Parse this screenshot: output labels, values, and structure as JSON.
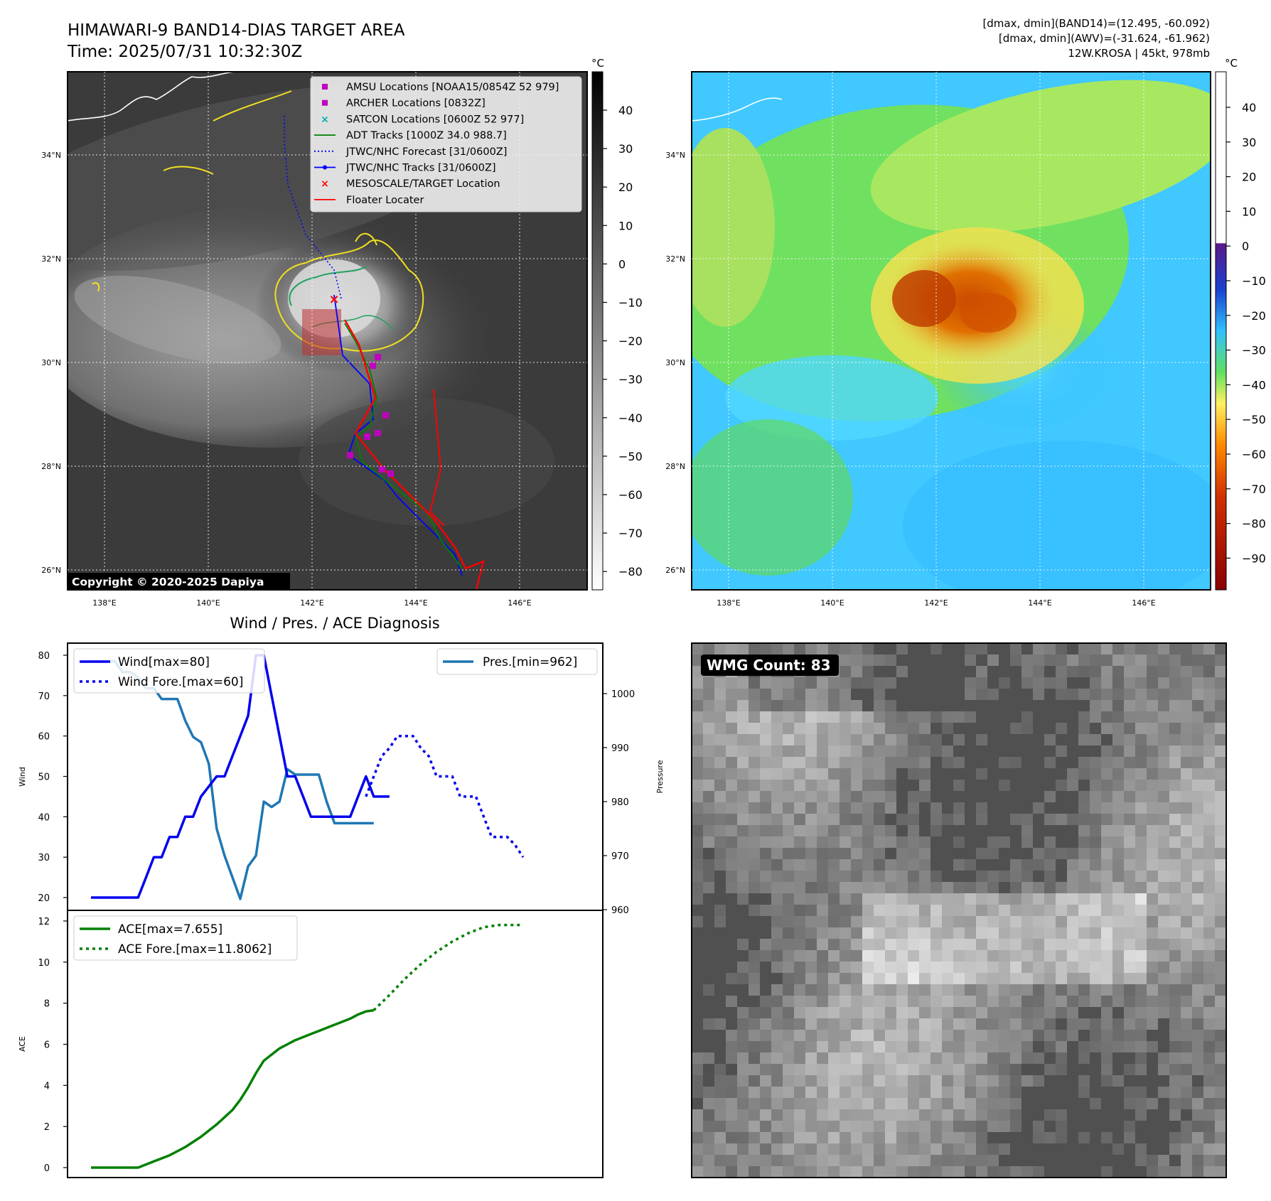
{
  "header": {
    "title_line1": "HIMAWARI-9 BAND14-DIAS TARGET AREA",
    "title_line2": "Time: 2025/07/31 10:32:30Z",
    "info_line1": "[dmax, dmin](BAND14)=(12.495, -60.092)",
    "info_line2": "[dmax, dmin](AWV)=(-31.624, -61.962)",
    "info_line3": "12W.KROSA | 45kt, 978mb"
  },
  "map_ir": {
    "lat_labels": [
      "34°N",
      "32°N",
      "30°N",
      "28°N",
      "26°N"
    ],
    "lon_labels": [
      "138°E",
      "140°E",
      "142°E",
      "144°E",
      "146°E"
    ],
    "colorbar_unit": "°C",
    "colorbar_ticks": [
      "40",
      "30",
      "20",
      "10",
      "0",
      "−10",
      "−20",
      "−30",
      "−40",
      "−50",
      "−60",
      "−70",
      "−80"
    ],
    "copyright": "Copyright © 2020-2025 Dapiya",
    "legend": [
      {
        "label": "AMSU Locations [NOAA15/0854Z 52 979]",
        "color": "#c000c0",
        "symbol": "square"
      },
      {
        "label": "ARCHER Locations [0832Z]",
        "color": "#c000c0",
        "symbol": "square"
      },
      {
        "label": "SATCON Locations [0600Z 52 977]",
        "color": "#00b0b0",
        "symbol": "x"
      },
      {
        "label": "ADT Tracks [1000Z 34.0 988.7]",
        "color": "#008000",
        "symbol": "line"
      },
      {
        "label": "JTWC/NHC Forecast [31/0600Z]",
        "color": "#0000ff",
        "symbol": "dotted"
      },
      {
        "label": "JTWC/NHC Tracks [31/0600Z]",
        "color": "#0000ff",
        "symbol": "line-dot"
      },
      {
        "label": "MESOSCALE/TARGET Location",
        "color": "#ff0000",
        "symbol": "x"
      },
      {
        "label": "Floater Locater",
        "color": "#ff0000",
        "symbol": "line"
      }
    ]
  },
  "map_wv": {
    "lat_labels": [
      "34°N",
      "32°N",
      "30°N",
      "28°N",
      "26°N"
    ],
    "lon_labels": [
      "138°E",
      "140°E",
      "142°E",
      "144°E",
      "146°E"
    ],
    "colorbar_unit": "°C",
    "colorbar_ticks": [
      "40",
      "30",
      "20",
      "10",
      "0",
      "−10",
      "−20",
      "−30",
      "−40",
      "−50",
      "−60",
      "−70",
      "−80",
      "−90"
    ]
  },
  "wmg": {
    "label": "WMG Count: 83"
  },
  "diagnosis": {
    "title": "Wind / Pres. / ACE Diagnosis",
    "wind_ylabel": "Wind",
    "pressure_ylabel": "Pressure",
    "ace_ylabel": "ACE",
    "wind_ticks": [
      "80",
      "70",
      "60",
      "50",
      "40",
      "30",
      "20"
    ],
    "pressure_ticks": [
      "1000",
      "990",
      "980",
      "970",
      "960"
    ],
    "ace_ticks": [
      "12",
      "10",
      "8",
      "6",
      "4",
      "2",
      "0"
    ],
    "legend_wind": "Wind[max=80]",
    "legend_wind_fore": "Wind Fore.[max=60]",
    "legend_pres": "Pres.[min=962]",
    "legend_ace": "ACE[max=7.655]",
    "legend_ace_fore": "ACE Fore.[max=11.8062]"
  },
  "chart_data": [
    {
      "type": "line",
      "title": "Wind / Pres. / ACE Diagnosis",
      "ylabel": "Wind",
      "ylim": [
        18,
        82
      ],
      "series": [
        {
          "name": "Wind[max=80]",
          "style": "solid",
          "color": "#0000ee",
          "x": [
            0,
            3,
            6,
            7,
            8,
            9,
            10,
            11,
            12,
            13,
            14,
            16,
            17,
            18,
            19,
            20,
            21,
            22,
            23,
            24,
            25,
            26,
            27,
            28,
            29,
            30,
            31,
            32,
            33,
            34,
            35,
            36,
            37,
            38
          ],
          "values": [
            20,
            20,
            20,
            25,
            30,
            30,
            35,
            35,
            40,
            40,
            45,
            50,
            50,
            55,
            60,
            65,
            80,
            80,
            70,
            60,
            50,
            50,
            45,
            40,
            40,
            40,
            40,
            40,
            40,
            45,
            50,
            45,
            45,
            45
          ]
        },
        {
          "name": "Wind Fore.[max=60]",
          "style": "dotted",
          "color": "#0000ee",
          "x": [
            35,
            36,
            37,
            38,
            39,
            40,
            41,
            42,
            43,
            44,
            45,
            46,
            47,
            48,
            49,
            50,
            51,
            52,
            53,
            54,
            55
          ],
          "values": [
            45,
            50,
            55,
            57,
            60,
            60,
            60,
            57,
            55,
            50,
            50,
            50,
            45,
            45,
            45,
            40,
            35,
            35,
            35,
            33,
            30
          ]
        }
      ]
    },
    {
      "type": "line",
      "ylabel": "Pressure",
      "ylim": [
        960,
        1008
      ],
      "series": [
        {
          "name": "Pres.[min=962]",
          "style": "solid",
          "color": "#1f77b4",
          "x": [
            0,
            3,
            4,
            5,
            6,
            7,
            8,
            9,
            10,
            11,
            12,
            13,
            14,
            15,
            16,
            17,
            18,
            19,
            20,
            21,
            22,
            23,
            24,
            25,
            26,
            27,
            28,
            29,
            30,
            31,
            32,
            33,
            34,
            35,
            36
          ],
          "values": [
            1006,
            1006,
            1004,
            1004,
            1003,
            1001,
            1001,
            999,
            999,
            999,
            995,
            992,
            991,
            987,
            975,
            970,
            966,
            962,
            968,
            970,
            980,
            979,
            980,
            986,
            985,
            985,
            985,
            985,
            980,
            976,
            976,
            976,
            976,
            976,
            976
          ]
        }
      ]
    },
    {
      "type": "line",
      "ylabel": "ACE",
      "ylim": [
        -0.5,
        12.5
      ],
      "series": [
        {
          "name": "ACE[max=7.655]",
          "style": "solid",
          "color": "#008000",
          "x": [
            0,
            6,
            8,
            10,
            12,
            14,
            16,
            18,
            19,
            20,
            21,
            22,
            23,
            24,
            25,
            26,
            27,
            28,
            29,
            30,
            31,
            32,
            33,
            34,
            35,
            36
          ],
          "values": [
            0,
            0,
            0.3,
            0.6,
            1.0,
            1.5,
            2.1,
            2.8,
            3.3,
            3.9,
            4.6,
            5.2,
            5.5,
            5.8,
            6.0,
            6.2,
            6.35,
            6.5,
            6.65,
            6.8,
            6.95,
            7.1,
            7.25,
            7.45,
            7.6,
            7.655
          ]
        },
        {
          "name": "ACE Fore.[max=11.8062]",
          "style": "dotted",
          "color": "#008000",
          "x": [
            36,
            38,
            40,
            42,
            44,
            46,
            48,
            50,
            52,
            54,
            55
          ],
          "values": [
            7.655,
            8.4,
            9.2,
            9.9,
            10.5,
            11.0,
            11.4,
            11.7,
            11.8062,
            11.8062,
            11.8062
          ]
        }
      ]
    }
  ]
}
